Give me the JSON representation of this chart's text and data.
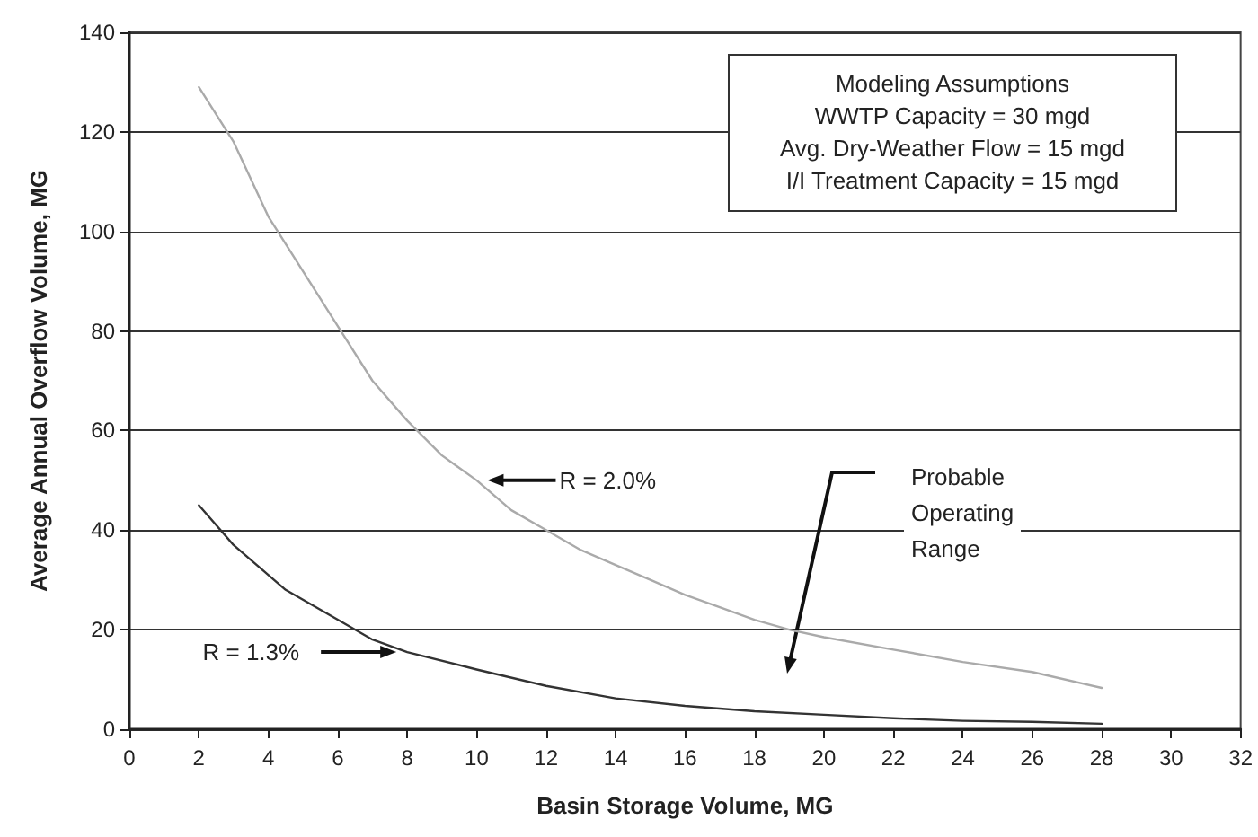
{
  "chart_data": {
    "type": "line",
    "xlabel": "Basin Storage Volume, MG",
    "ylabel": "Average Annual Overflow Volume, MG",
    "series": [
      {
        "name": "R = 2.0%",
        "color": "#aaaaaa",
        "x": [
          2,
          3,
          4,
          5,
          6,
          7,
          8,
          9,
          10,
          11,
          12,
          13,
          14,
          15,
          16,
          17,
          18,
          19,
          20,
          22,
          24,
          26,
          28
        ],
        "values": [
          129,
          118,
          103,
          92,
          81,
          70,
          62,
          55,
          50,
          44,
          40,
          36,
          33,
          30,
          27,
          24.5,
          22,
          20,
          18.5,
          16,
          13.5,
          11.5,
          8.3
        ]
      },
      {
        "name": "R = 1.3%",
        "color": "#333333",
        "x": [
          2,
          3,
          4.5,
          6,
          7,
          8,
          10,
          12,
          14,
          16,
          18,
          20,
          22,
          24,
          26,
          28
        ],
        "values": [
          45,
          37,
          28,
          22,
          18,
          15.5,
          12,
          8.7,
          6.2,
          4.7,
          3.6,
          2.9,
          2.2,
          1.7,
          1.5,
          1.1
        ]
      }
    ],
    "annotations": [
      "Modeling Assumptions",
      "WWTP Capacity = 30 mgd",
      "Avg. Dry-Weather Flow = 15 mgd",
      "I/I Treatment Capacity = 15 mgd",
      "Probable\nOperating\nRange"
    ],
    "xlim": [
      0,
      32
    ],
    "xticks": [
      0,
      2,
      4,
      6,
      8,
      10,
      12,
      14,
      16,
      18,
      20,
      22,
      24,
      26,
      28,
      30,
      32
    ],
    "ylim": [
      0,
      140
    ],
    "yticks": [
      0,
      20,
      40,
      60,
      80,
      100,
      120,
      140
    ],
    "grid": "y",
    "legend": false,
    "marker": "none",
    "line_style": "solid"
  }
}
